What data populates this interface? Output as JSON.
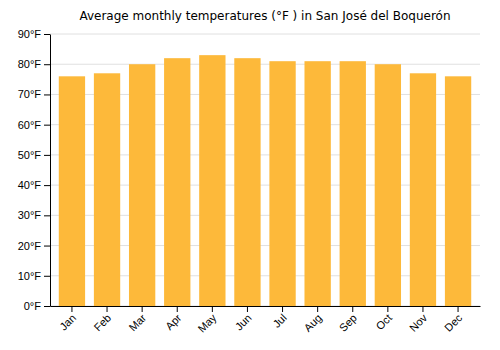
{
  "chart_data": {
    "type": "bar",
    "title": "Average monthly temperatures (°F ) in San José del Boquerón",
    "categories": [
      "Jan",
      "Feb",
      "Mar",
      "Apr",
      "May",
      "Jun",
      "Jul",
      "Aug",
      "Sep",
      "Oct",
      "Nov",
      "Dec"
    ],
    "values": [
      76,
      77,
      80,
      82,
      83,
      82,
      81,
      81,
      81,
      80,
      77,
      76
    ],
    "color": "#FDB93A",
    "ylim": [
      0,
      90
    ],
    "yticks": [
      {
        "value": 0,
        "label": "0°F"
      },
      {
        "value": 10,
        "label": "10°F"
      },
      {
        "value": 20,
        "label": "20°F"
      },
      {
        "value": 30,
        "label": "30°F"
      },
      {
        "value": 40,
        "label": "40°F"
      },
      {
        "value": 50,
        "label": "50°F"
      },
      {
        "value": 60,
        "label": "60°F"
      },
      {
        "value": 70,
        "label": "70°F"
      },
      {
        "value": 80,
        "label": "80°F"
      },
      {
        "value": 90,
        "label": "90°F"
      }
    ],
    "grid": true
  }
}
